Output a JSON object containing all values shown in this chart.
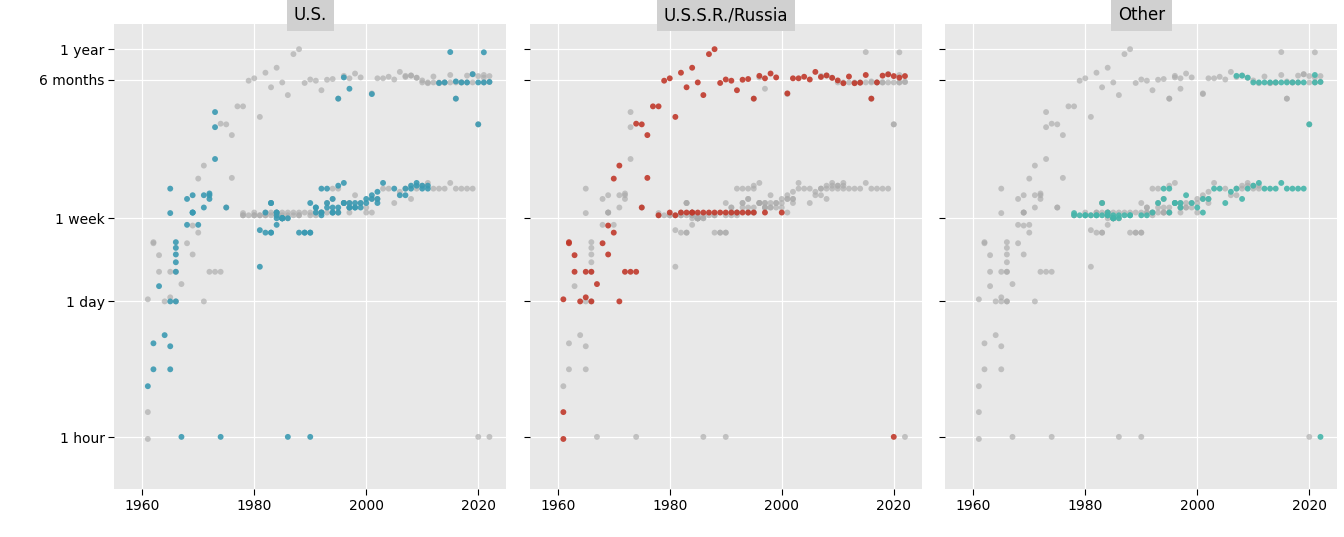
{
  "panels": [
    "U.S.",
    "U.S.S.R./Russia",
    "Other"
  ],
  "colors": [
    "#3B9AB2",
    "#C0392B",
    "#45B5AA"
  ],
  "gray": "#AAAAAA",
  "bg_panel": "#E8E8E8",
  "bg_header": "#D0D0D0",
  "bg_fig": "#FFFFFF",
  "dot_size": 18,
  "xlim": [
    1955,
    2025
  ],
  "xticks": [
    1960,
    1980,
    2000,
    2020
  ],
  "title_fs": 12,
  "tick_fs": 10,
  "log_1hour": 0.0,
  "log_1day": 3.1781,
  "log_1week": 5.124,
  "log_6months": 8.3703,
  "log_1year": 9.0784
}
